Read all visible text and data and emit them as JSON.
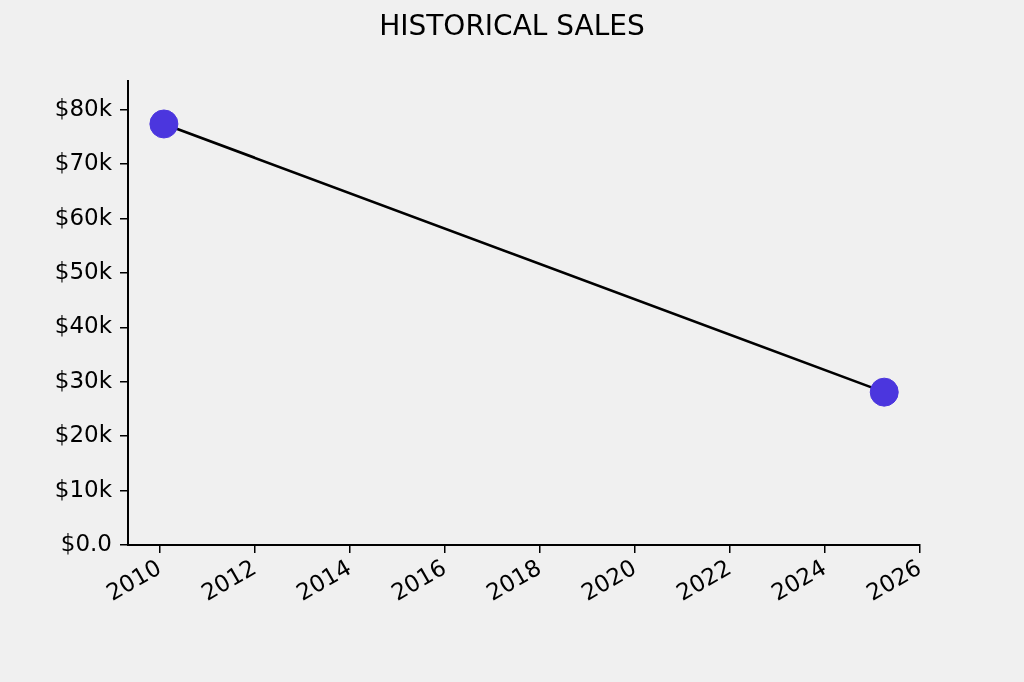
{
  "chart_data": {
    "type": "line",
    "title": "HISTORICAL SALES",
    "x": [
      "2010-02",
      "2025-04"
    ],
    "series": [
      {
        "color": "#000000",
        "colors": [
          "#4b36de",
          "#4b36de"
        ],
        "values": [
          77400,
          28100
        ]
      }
    ],
    "xlim": [
      "2009-05",
      "2026-01"
    ],
    "xticks": [
      "2010",
      "2012",
      "2014",
      "2016",
      "2018",
      "2020",
      "2022",
      "2024",
      "2026"
    ],
    "ylim": [
      0,
      85300
    ],
    "yticks": [
      {
        "value": 0,
        "label": "$0.0"
      },
      {
        "value": 10000,
        "label": "$10k"
      },
      {
        "value": 20000,
        "label": "$20k"
      },
      {
        "value": 30000,
        "label": "$30k"
      },
      {
        "value": 40000,
        "label": "$40k"
      },
      {
        "value": 50000,
        "label": "$50k"
      },
      {
        "value": 60000,
        "label": "$60k"
      },
      {
        "value": 70000,
        "label": "$70k"
      },
      {
        "value": 80000,
        "label": "$80k"
      }
    ],
    "grid": false,
    "legend": false,
    "marker": "circle"
  }
}
